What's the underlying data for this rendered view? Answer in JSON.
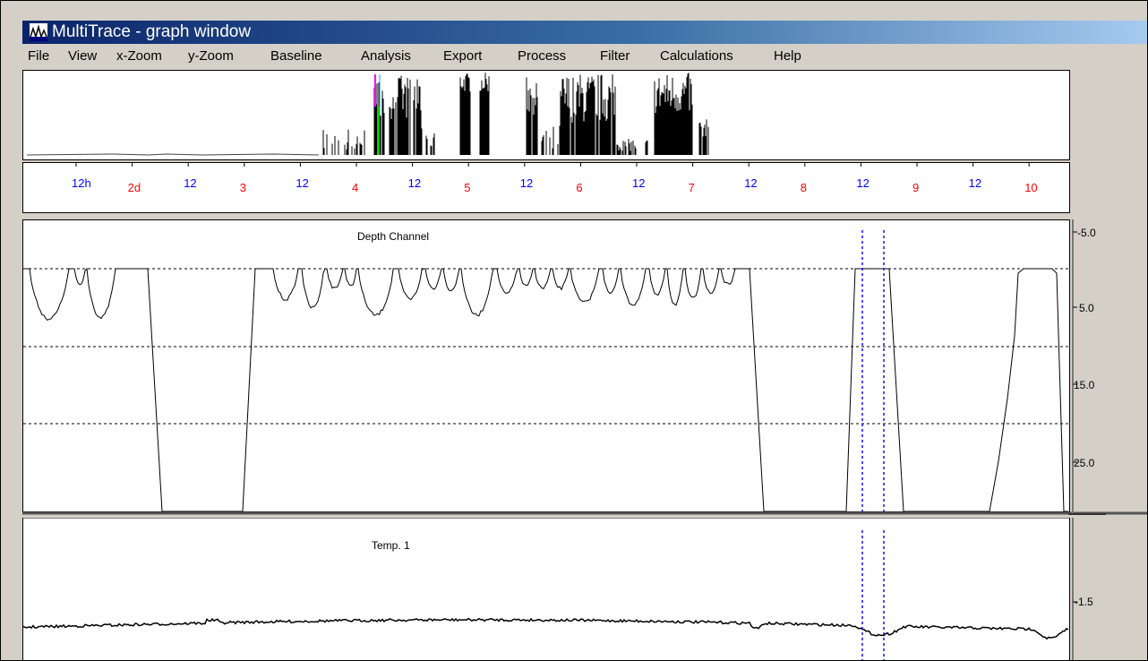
{
  "window": {
    "title": "MultiTrace - graph window",
    "accent": "#0a246a"
  },
  "menu": {
    "items": [
      "File",
      "View",
      "x-Zoom",
      "y-Zoom",
      "Baseline",
      "Analysis",
      "Export",
      "Process",
      "Filter",
      "Calculations",
      "Help"
    ]
  },
  "time_axis": {
    "ticks": [
      {
        "label": "12h",
        "color": "#0000ff"
      },
      {
        "label": "2d",
        "color": "#ff0000"
      },
      {
        "label": "12",
        "color": "#0000ff"
      },
      {
        "label": "3",
        "color": "#ff0000"
      },
      {
        "label": "12",
        "color": "#0000ff"
      },
      {
        "label": "4",
        "color": "#ff0000"
      },
      {
        "label": "12",
        "color": "#0000ff"
      },
      {
        "label": "5",
        "color": "#ff0000"
      },
      {
        "label": "12",
        "color": "#0000ff"
      },
      {
        "label": "6",
        "color": "#ff0000"
      },
      {
        "label": "12",
        "color": "#0000ff"
      },
      {
        "label": "7",
        "color": "#ff0000"
      },
      {
        "label": "12",
        "color": "#0000ff"
      },
      {
        "label": "8",
        "color": "#ff0000"
      },
      {
        "label": "12",
        "color": "#0000ff"
      },
      {
        "label": "9",
        "color": "#ff0000"
      },
      {
        "label": "12",
        "color": "#0000ff"
      },
      {
        "label": "10",
        "color": "#ff0000"
      }
    ]
  },
  "depth_panel": {
    "title": "Depth Channel",
    "y_ticks": [
      "-5.0",
      "5.0",
      "15.0",
      "25.0"
    ]
  },
  "temp_panel": {
    "title": "Temp. 1",
    "y_ticks": [
      "-1.5"
    ]
  },
  "chart_data": [
    {
      "type": "bar",
      "title": "",
      "grid": false,
      "series": [
        {
          "values": []
        }
      ]
    },
    {
      "type": "line",
      "title": "Depth Channel",
      "ylim": [
        -10,
        30
      ],
      "y_inverted": true,
      "grid": true,
      "gridlines_y": [
        0,
        10,
        20
      ],
      "y_ticks": [
        -5,
        5,
        15,
        25
      ],
      "series": [
        {
          "values": []
        }
      ]
    },
    {
      "type": "line",
      "title": "Temp. 1",
      "y_ticks": [
        -1.5
      ],
      "series": [
        {
          "values": []
        }
      ]
    }
  ]
}
